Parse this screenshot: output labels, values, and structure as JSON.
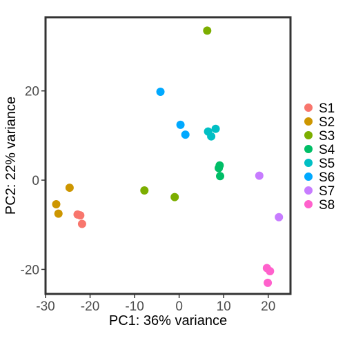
{
  "chart_data": {
    "type": "scatter",
    "xlabel": "PC1: 36% variance",
    "ylabel": "PC2: 22% variance",
    "xlim": [
      -30,
      25
    ],
    "ylim": [
      -25.5,
      36.5
    ],
    "xticks": [
      -30,
      -20,
      -10,
      0,
      10,
      20
    ],
    "yticks": [
      -20,
      0,
      20
    ],
    "xtick_labels": [
      "-30",
      "-20",
      "-10",
      "0",
      "10",
      "20"
    ],
    "ytick_labels": [
      "-20",
      "0",
      "20"
    ],
    "grid": false,
    "legend_position": "right",
    "series": [
      {
        "name": "S1",
        "color": "#F8766D",
        "points": [
          [
            -22.8,
            -7.7
          ],
          [
            -22.2,
            -7.9
          ],
          [
            -21.8,
            -9.8
          ]
        ]
      },
      {
        "name": "S2",
        "color": "#CD9600",
        "points": [
          [
            -24.6,
            -1.7
          ],
          [
            -27.6,
            -5.4
          ],
          [
            -27.1,
            -7.5
          ]
        ]
      },
      {
        "name": "S3",
        "color": "#7CAE00",
        "points": [
          [
            6.3,
            33.5
          ],
          [
            -7.8,
            -2.3
          ],
          [
            -1.0,
            -3.8
          ]
        ]
      },
      {
        "name": "S4",
        "color": "#00BE67",
        "points": [
          [
            9.1,
            3.3
          ],
          [
            8.9,
            2.7
          ],
          [
            9.2,
            0.9
          ]
        ]
      },
      {
        "name": "S5",
        "color": "#00BFC4",
        "points": [
          [
            6.5,
            10.9
          ],
          [
            8.2,
            11.5
          ],
          [
            7.2,
            9.8
          ]
        ]
      },
      {
        "name": "S6",
        "color": "#00A9FF",
        "points": [
          [
            -4.2,
            19.8
          ],
          [
            0.3,
            12.4
          ],
          [
            1.4,
            10.2
          ]
        ]
      },
      {
        "name": "S7",
        "color": "#C77CFF",
        "points": [
          [
            18.0,
            1.0
          ],
          [
            22.4,
            -8.3
          ]
        ]
      },
      {
        "name": "S8",
        "color": "#FF61CC",
        "points": [
          [
            19.7,
            -19.7
          ],
          [
            20.4,
            -20.4
          ],
          [
            19.9,
            -23.0
          ]
        ]
      }
    ]
  }
}
